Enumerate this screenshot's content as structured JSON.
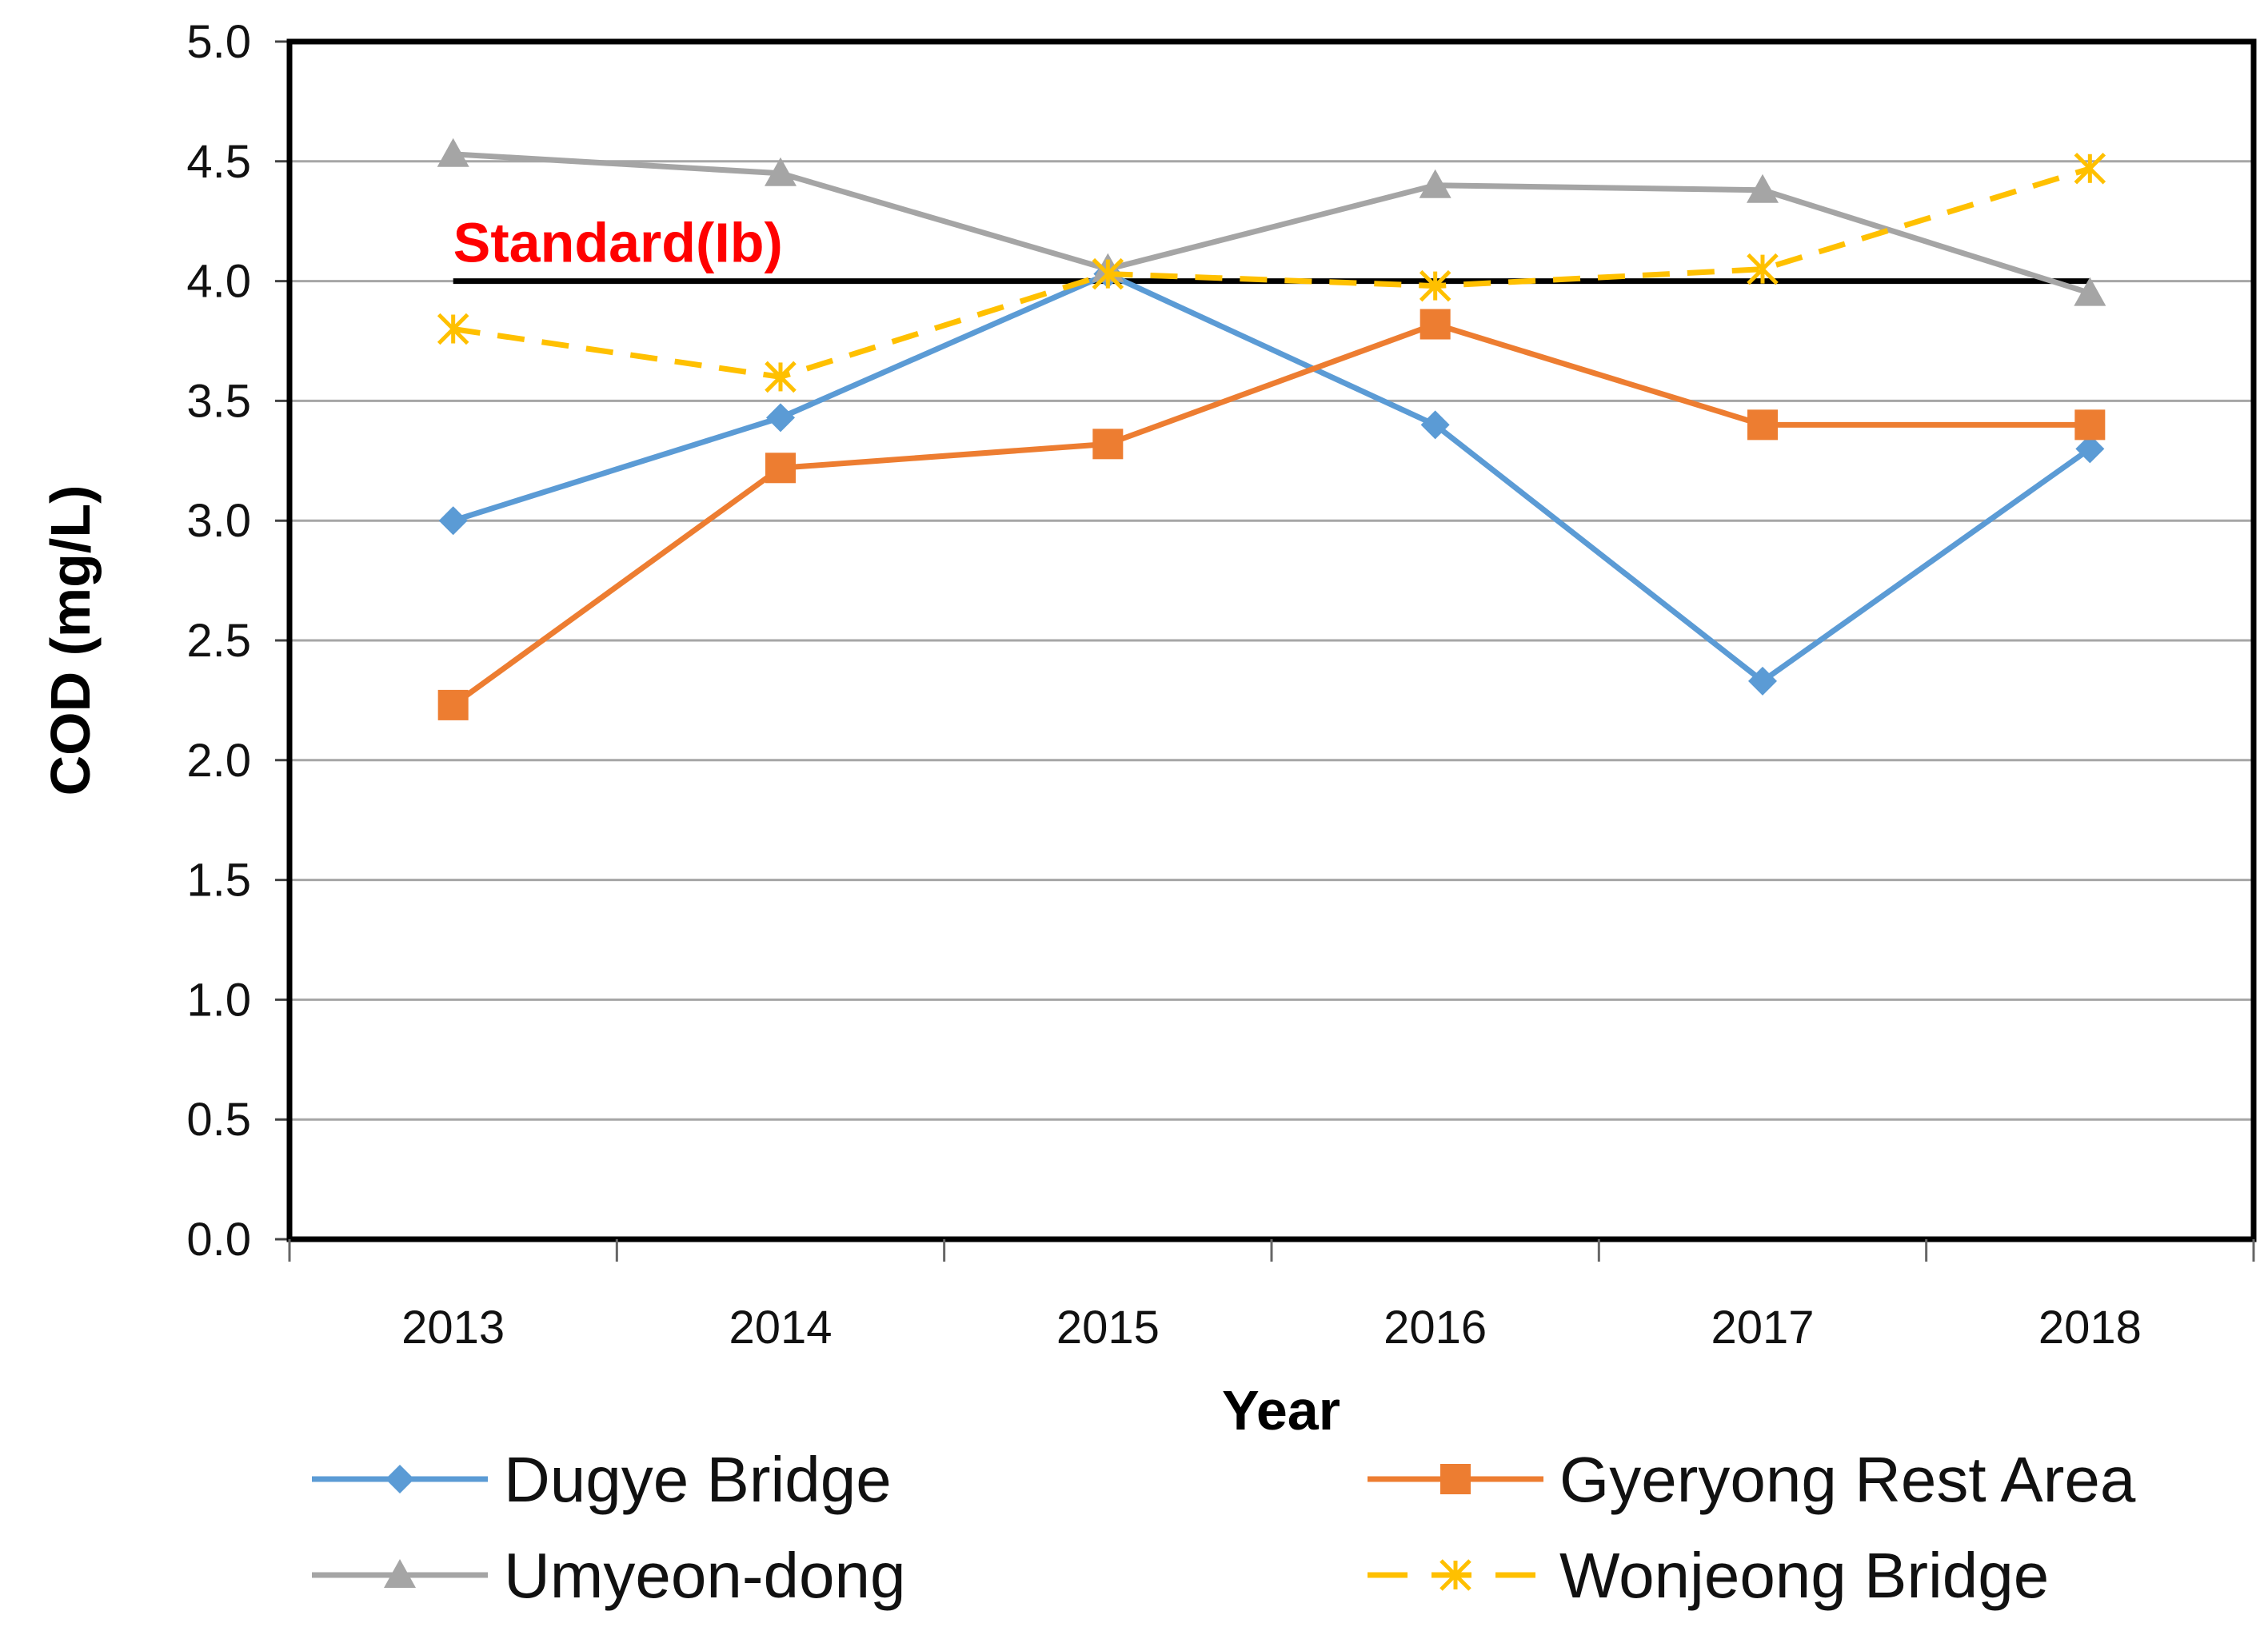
{
  "chart_data": {
    "type": "line",
    "xlabel": "Year",
    "ylabel": "COD (mg/L)",
    "categories": [
      "2013",
      "2014",
      "2015",
      "2016",
      "2017",
      "2018"
    ],
    "ylim": [
      0,
      5
    ],
    "yticks": [
      "0.0",
      "0.5",
      "1.0",
      "1.5",
      "2.0",
      "2.5",
      "3.0",
      "3.5",
      "4.0",
      "4.5",
      "5.0"
    ],
    "grid": true,
    "legend_position": "bottom",
    "series": [
      {
        "name": "Dugye Bridge",
        "values": [
          3.0,
          3.43,
          4.03,
          3.4,
          2.33,
          3.3
        ],
        "color": "#5B9BD5",
        "marker": "diamond",
        "dash": "solid"
      },
      {
        "name": "Gyeryong Rest Area",
        "values": [
          2.23,
          3.22,
          3.32,
          3.82,
          3.4,
          3.4
        ],
        "color": "#ED7D31",
        "marker": "square",
        "dash": "solid"
      },
      {
        "name": "Umyeon-dong",
        "values": [
          4.53,
          4.45,
          4.05,
          4.4,
          4.38,
          3.95
        ],
        "color": "#A5A5A5",
        "marker": "triangle",
        "dash": "solid"
      },
      {
        "name": "Wonjeong Bridge",
        "values": [
          3.8,
          3.6,
          4.03,
          3.98,
          4.05,
          4.47
        ],
        "color": "#FFC000",
        "marker": "star",
        "dash": "dashed"
      }
    ],
    "reference_line": {
      "label": "Standard(Ib)",
      "value": 4.0,
      "color": "#000000",
      "label_color": "#FF0000"
    }
  }
}
